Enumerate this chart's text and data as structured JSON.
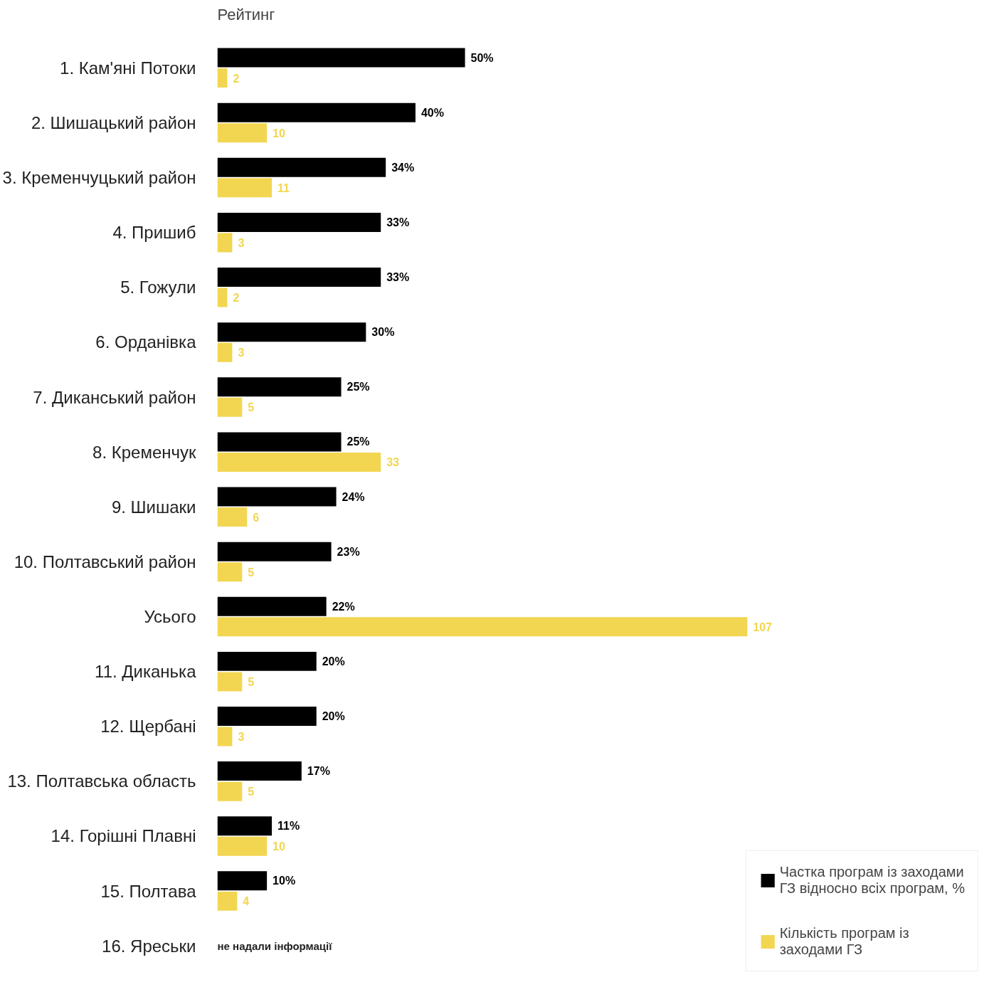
{
  "chart_data": {
    "type": "bar",
    "orientation": "horizontal",
    "title": "Рейтинг",
    "categories": [
      "1. Кам'яні Потоки",
      "2. Шишацький район",
      "3. Кременчуцький район",
      "4. Пришиб",
      "5. Гожули",
      "6. Орданівка",
      "7. Диканський район",
      "8. Кременчук",
      "9. Шишаки",
      "10. Полтавський район",
      "Усього",
      "11. Диканька",
      "12. Щербані",
      "13. Полтавська область",
      "14. Горішні Плавні",
      "15. Полтава",
      "16. Яреськи"
    ],
    "series": [
      {
        "name": "Частка програм із заходами ГЗ відносно всіх програм, %",
        "color": "#000000",
        "values": [
          50,
          40,
          34,
          33,
          33,
          30,
          25,
          25,
          24,
          23,
          22,
          20,
          20,
          17,
          11,
          10,
          null
        ],
        "value_labels": [
          "50%",
          "40%",
          "34%",
          "33%",
          "33%",
          "30%",
          "25%",
          "25%",
          "24%",
          "23%",
          "22%",
          "20%",
          "20%",
          "17%",
          "11%",
          "10%",
          null
        ]
      },
      {
        "name": "Кількість програм із заходами ГЗ",
        "color": "#f2d651",
        "values": [
          2,
          10,
          11,
          3,
          2,
          3,
          5,
          33,
          6,
          5,
          107,
          5,
          3,
          5,
          10,
          4,
          null
        ],
        "value_labels": [
          "2",
          "10",
          "11",
          "3",
          "2",
          "3",
          "5",
          "33",
          "6",
          "5",
          "107",
          "5",
          "3",
          "5",
          "10",
          "4",
          null
        ]
      }
    ],
    "tick_labels": "y",
    "grid": false,
    "legend": "bottom right",
    "annotations": [
      "не надали інформації"
    ]
  }
}
